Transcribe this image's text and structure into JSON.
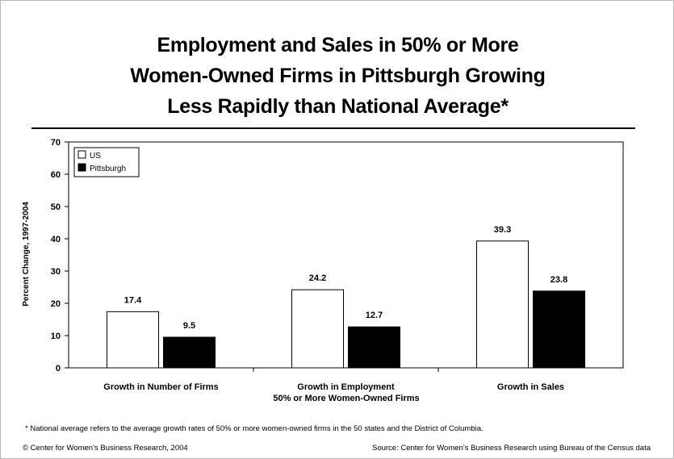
{
  "chart_data": {
    "type": "bar",
    "title_lines": [
      "Employment and Sales in 50% or More",
      "Women-Owned Firms in Pittsburgh Growing",
      "Less Rapidly than National Average*"
    ],
    "xlabel": "50% or More Women-Owned Firms",
    "ylabel": "Percent Change, 1997-2004",
    "ylim": [
      0,
      70
    ],
    "yticks": [
      0,
      10,
      20,
      30,
      40,
      50,
      60,
      70
    ],
    "categories": [
      "Growth in Number of Firms",
      "Growth in Employment",
      "Growth in Sales"
    ],
    "series": [
      {
        "name": "US",
        "color": "#ffffff",
        "values": [
          17.4,
          24.2,
          39.3
        ]
      },
      {
        "name": "Pittsburgh",
        "color": "#000000",
        "values": [
          9.5,
          12.7,
          23.8
        ]
      }
    ],
    "data_labels": [
      [
        "17.4",
        "24.2",
        "39.3"
      ],
      [
        "9.5",
        "12.7",
        "23.8"
      ]
    ],
    "legend_position": "top-left",
    "grid": false
  },
  "footnote": "* National average refers to the average growth rates of 50% or more women-owned firms in the 50 states and the District of Columbia.",
  "copyright": "© Center for Women’s Business Research, 2004",
  "source": "Source: Center for Women’s Business Research using Bureau of the Census data"
}
